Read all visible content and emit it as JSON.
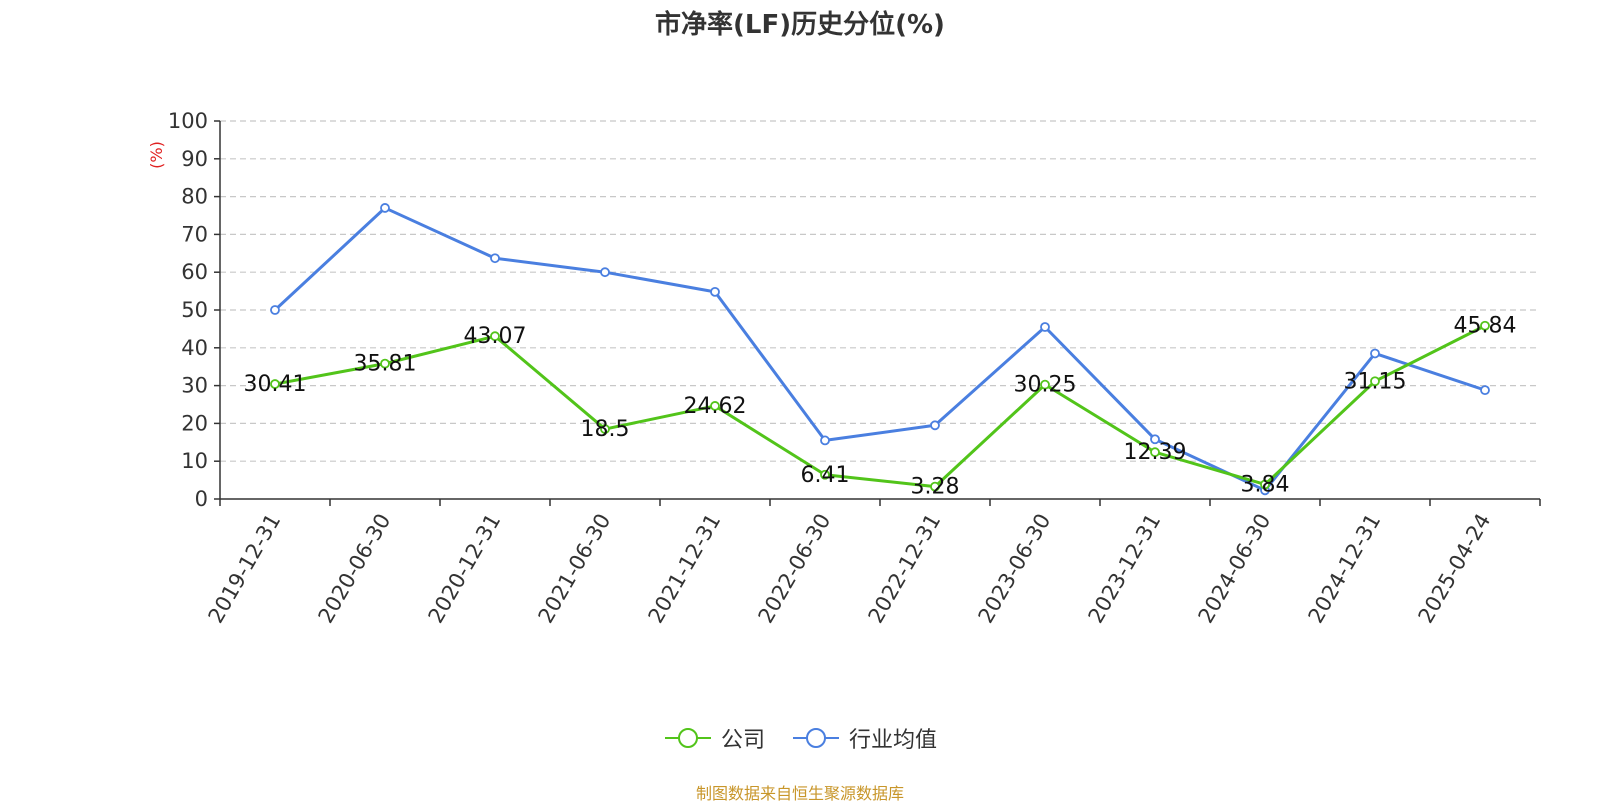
{
  "chart_data": {
    "type": "line",
    "title": "市净率(LF)历史分位(%)",
    "ylabel": "(%)",
    "xlabel": "",
    "categories": [
      "2019-12-31",
      "2020-06-30",
      "2020-12-31",
      "2021-06-30",
      "2021-12-31",
      "2022-06-30",
      "2022-12-31",
      "2023-06-30",
      "2023-12-31",
      "2024-06-30",
      "2024-12-31",
      "2025-04-24"
    ],
    "ylim": [
      0,
      100
    ],
    "yticks": [
      0,
      10,
      20,
      30,
      40,
      50,
      60,
      70,
      80,
      90,
      100
    ],
    "grid": true,
    "legend_position": "bottom-center",
    "series": [
      {
        "name": "公司",
        "color": "#52c41a",
        "values": [
          30.41,
          35.81,
          43.07,
          18.5,
          24.62,
          6.41,
          3.28,
          30.25,
          12.39,
          3.84,
          31.15,
          45.84
        ],
        "labels": [
          "30.41",
          "35.81",
          "43.07",
          "18.5",
          "24.62",
          "6.41",
          "3.28",
          "30.25",
          "12.39",
          "3.84",
          "31.15",
          "45.84"
        ]
      },
      {
        "name": "行业均值",
        "color": "#4a7fe0",
        "values": [
          50,
          77,
          63.7,
          60,
          54.8,
          15.5,
          19.5,
          45.5,
          15.8,
          2.3,
          38.5,
          28.8
        ]
      }
    ]
  },
  "source_note": "制图数据来自恒生聚源数据库"
}
